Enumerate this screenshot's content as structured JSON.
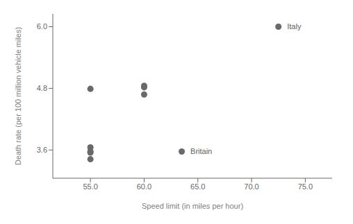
{
  "chart_data": {
    "type": "scatter",
    "xlabel": "Speed limit (in miles per hour)",
    "ylabel": "Death rate (per 100 million vehicle miles)",
    "x": [
      55,
      55,
      55,
      55,
      55,
      60,
      60,
      60,
      72.5,
      63.5
    ],
    "values": [
      4.79,
      3.65,
      3.57,
      3.55,
      3.42,
      4.85,
      4.82,
      4.68,
      6.0,
      3.57
    ],
    "annotations": [
      {
        "x": 72.5,
        "y": 6.0,
        "text": "Italy"
      },
      {
        "x": 63.5,
        "y": 3.57,
        "text": "Britain"
      }
    ],
    "color": "#696969",
    "xlim": [
      51.5,
      77.5
    ],
    "ylim": [
      3.05,
      6.25
    ],
    "xticks": [
      {
        "value": 55.0,
        "label": "55.0"
      },
      {
        "value": 60.0,
        "label": "60.0"
      },
      {
        "value": 65.0,
        "label": "65.0"
      },
      {
        "value": 70.0,
        "label": "70.0"
      },
      {
        "value": 75.0,
        "label": "75.0"
      }
    ],
    "yticks": [
      3.6,
      4.8,
      {
        "value": 6.0,
        "label": "6.0"
      }
    ]
  }
}
